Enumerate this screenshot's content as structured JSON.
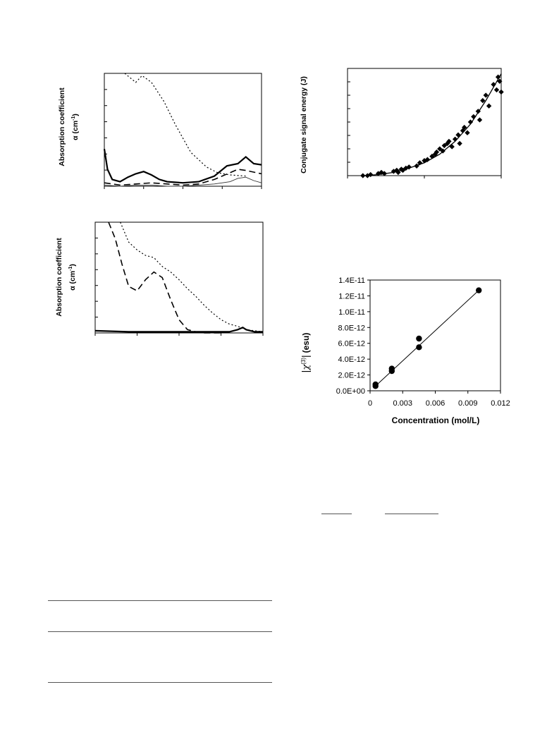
{
  "charts": {
    "abs1": {
      "ylabel_line1": "Absorption coefficient",
      "ylabel_line2": "α (cm",
      "ylabel_sup": "-1",
      "ylabel_close": ")"
    },
    "signal": {
      "ylabel": "Conjugate signal energy (J)"
    },
    "abs2": {
      "ylabel_line1": "Absorption coefficient",
      "ylabel_line2": "α (cm",
      "ylabel_sup": "-1",
      "ylabel_close": ")"
    },
    "chi3": {
      "ylabel_chi": "χ",
      "ylabel_sup": "(3)",
      "ylabel_unit": "(esu)",
      "xlabel": "Concentration (mol/L)",
      "yticks": [
        "0.0E+00",
        "2.0E-12",
        "4.0E-12",
        "6.0E-12",
        "8.0E-12",
        "1.0E-11",
        "1.2E-11",
        "1.4E-11"
      ],
      "xticks": [
        "0",
        "0.003",
        "0.006",
        "0.009",
        "0.012"
      ]
    }
  },
  "chart_data": [
    {
      "type": "line",
      "ylabel": "Absorption coefficient α (cm-1)",
      "xlim": [
        0,
        1
      ],
      "ylim": [
        0,
        1
      ],
      "series": [
        {
          "style": "dotted",
          "x": [
            0.13,
            0.2,
            0.24,
            0.3,
            0.38,
            0.45,
            0.55,
            0.65,
            0.72,
            0.8,
            0.9
          ],
          "y": [
            1.0,
            0.92,
            0.98,
            0.92,
            0.75,
            0.55,
            0.3,
            0.17,
            0.12,
            0.1,
            0.09
          ]
        },
        {
          "style": "solid-thick",
          "x": [
            0,
            0.02,
            0.05,
            0.1,
            0.15,
            0.2,
            0.25,
            0.3,
            0.35,
            0.4,
            0.5,
            0.6,
            0.7,
            0.78,
            0.85,
            0.9,
            0.95,
            1.0
          ],
          "y": [
            0.33,
            0.15,
            0.06,
            0.04,
            0.08,
            0.11,
            0.13,
            0.1,
            0.06,
            0.04,
            0.03,
            0.04,
            0.09,
            0.18,
            0.2,
            0.26,
            0.2,
            0.19
          ]
        },
        {
          "style": "dashed",
          "x": [
            0,
            0.1,
            0.2,
            0.3,
            0.4,
            0.5,
            0.6,
            0.7,
            0.8,
            0.85,
            0.9,
            1.0
          ],
          "y": [
            0.03,
            0.01,
            0.02,
            0.03,
            0.02,
            0.01,
            0.02,
            0.06,
            0.12,
            0.15,
            0.14,
            0.11
          ]
        },
        {
          "style": "solid-thin",
          "x": [
            0,
            0.1,
            0.2,
            0.3,
            0.4,
            0.5,
            0.6,
            0.7,
            0.8,
            0.85,
            0.9,
            0.95,
            1.0
          ],
          "y": [
            0.01,
            0.0,
            0.01,
            0.01,
            0.0,
            0.0,
            0.01,
            0.02,
            0.04,
            0.07,
            0.08,
            0.05,
            0.03
          ]
        }
      ]
    },
    {
      "type": "scatter",
      "ylabel": "Conjugate signal energy (J)",
      "xlim": [
        0,
        1
      ],
      "ylim": [
        0,
        1
      ],
      "series": [
        {
          "name": "data",
          "x": [
            0.1,
            0.13,
            0.15,
            0.2,
            0.22,
            0.24,
            0.3,
            0.32,
            0.33,
            0.35,
            0.36,
            0.38,
            0.4,
            0.45,
            0.47,
            0.5,
            0.52,
            0.55,
            0.57,
            0.58,
            0.6,
            0.62,
            0.63,
            0.65,
            0.66,
            0.68,
            0.7,
            0.72,
            0.73,
            0.75,
            0.76,
            0.78,
            0.8,
            0.82,
            0.85,
            0.86,
            0.88,
            0.9,
            0.92,
            0.95,
            0.97,
            0.98,
            0.99,
            1.0
          ],
          "y": [
            0.0,
            0.0,
            0.01,
            0.02,
            0.03,
            0.02,
            0.04,
            0.05,
            0.03,
            0.06,
            0.05,
            0.07,
            0.08,
            0.09,
            0.12,
            0.14,
            0.15,
            0.18,
            0.2,
            0.22,
            0.25,
            0.23,
            0.28,
            0.3,
            0.32,
            0.27,
            0.34,
            0.38,
            0.3,
            0.42,
            0.45,
            0.4,
            0.5,
            0.55,
            0.6,
            0.52,
            0.7,
            0.75,
            0.65,
            0.85,
            0.8,
            0.92,
            0.88,
            0.78
          ]
        },
        {
          "name": "fit",
          "x": [
            0.1,
            0.2,
            0.3,
            0.4,
            0.5,
            0.6,
            0.7,
            0.8,
            0.9,
            1.0
          ],
          "y": [
            0.0,
            0.01,
            0.03,
            0.07,
            0.12,
            0.2,
            0.32,
            0.48,
            0.7,
            0.95
          ]
        }
      ]
    },
    {
      "type": "line",
      "ylabel": "Absorption coefficient α (cm-1)",
      "xlim": [
        0,
        1
      ],
      "ylim": [
        0,
        1
      ],
      "series": [
        {
          "style": "dotted",
          "x": [
            0.15,
            0.2,
            0.25,
            0.3,
            0.35,
            0.4,
            0.45,
            0.5,
            0.55,
            0.6,
            0.65,
            0.7,
            0.75,
            0.8,
            0.85,
            0.9,
            0.95,
            1.0
          ],
          "y": [
            1.0,
            0.82,
            0.75,
            0.7,
            0.68,
            0.6,
            0.55,
            0.48,
            0.4,
            0.33,
            0.25,
            0.18,
            0.12,
            0.08,
            0.06,
            0.03,
            0.02,
            0.01
          ]
        },
        {
          "style": "dashed",
          "x": [
            0.08,
            0.12,
            0.16,
            0.2,
            0.25,
            0.3,
            0.35,
            0.4,
            0.45,
            0.5,
            0.55,
            0.6,
            0.65,
            0.7,
            0.75
          ],
          "y": [
            1.0,
            0.85,
            0.62,
            0.42,
            0.38,
            0.48,
            0.55,
            0.5,
            0.3,
            0.12,
            0.03,
            0.01,
            0.0,
            0.0,
            0.0
          ]
        },
        {
          "style": "solid-thick",
          "x": [
            0,
            0.2,
            0.4,
            0.6,
            0.8,
            0.85,
            0.88,
            0.9,
            0.95,
            1.0
          ],
          "y": [
            0.02,
            0.01,
            0.01,
            0.01,
            0.01,
            0.03,
            0.05,
            0.03,
            0.01,
            0.01
          ]
        }
      ]
    },
    {
      "type": "scatter",
      "xlabel": "Concentration (mol/L)",
      "ylabel": "|χ(3)| (esu)",
      "xlim": [
        0,
        0.012
      ],
      "ylim": [
        0,
        1.4e-11
      ],
      "series": [
        {
          "name": "data",
          "x": [
            0.0005,
            0.0005,
            0.002,
            0.002,
            0.0045,
            0.0045,
            0.01
          ],
          "y": [
            6e-13,
            8e-13,
            2.5e-12,
            2.8e-12,
            5.5e-12,
            6.6e-12,
            1.27e-11
          ]
        },
        {
          "name": "fit",
          "x": [
            0.0005,
            0.01
          ],
          "y": [
            6e-13,
            1.27e-11
          ]
        }
      ]
    }
  ]
}
